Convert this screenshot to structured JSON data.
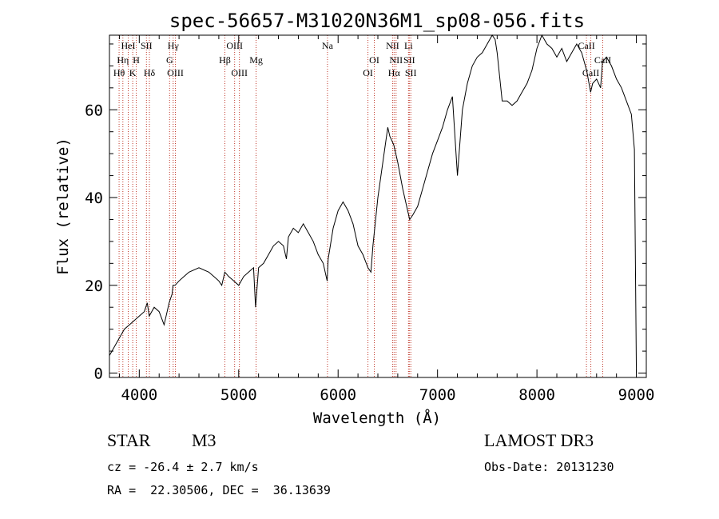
{
  "chart_data": {
    "type": "line",
    "title": "spec-56657-M31020N36M1_sp08-056.fits",
    "xlabel": "Wavelength (Å)",
    "ylabel": "Flux (relative)",
    "xlim": [
      3700,
      9100
    ],
    "ylim": [
      -1,
      77
    ],
    "x_ticks": [
      4000,
      5000,
      6000,
      7000,
      8000,
      9000
    ],
    "x_tick_labels": [
      "4000",
      "5000",
      "6000",
      "7000",
      "8000",
      "9000"
    ],
    "y_ticks": [
      0,
      20,
      40,
      60
    ],
    "y_tick_labels": [
      "0",
      "20",
      "40",
      "60"
    ],
    "grid": false,
    "series": [
      {
        "name": "spectrum",
        "x": [
          3700,
          3750,
          3800,
          3850,
          3900,
          3950,
          4000,
          4050,
          4080,
          4100,
          4150,
          4200,
          4250,
          4280,
          4300,
          4330,
          4340,
          4360,
          4400,
          4450,
          4500,
          4600,
          4700,
          4750,
          4800,
          4830,
          4860,
          4900,
          4950,
          5000,
          5050,
          5100,
          5150,
          5170,
          5200,
          5250,
          5300,
          5350,
          5400,
          5450,
          5480,
          5500,
          5550,
          5600,
          5650,
          5700,
          5750,
          5800,
          5850,
          5890,
          5900,
          5950,
          6000,
          6050,
          6100,
          6150,
          6200,
          6250,
          6300,
          6330,
          6350,
          6400,
          6450,
          6500,
          6520,
          6560,
          6600,
          6650,
          6700,
          6720,
          6750,
          6800,
          6850,
          6900,
          6950,
          7000,
          7050,
          7100,
          7150,
          7200,
          7250,
          7300,
          7350,
          7400,
          7450,
          7500,
          7550,
          7580,
          7600,
          7650,
          7700,
          7750,
          7800,
          7850,
          7900,
          7950,
          8000,
          8050,
          8100,
          8150,
          8200,
          8250,
          8300,
          8350,
          8400,
          8450,
          8500,
          8540,
          8560,
          8600,
          8640,
          8660,
          8700,
          8750,
          8800,
          8850,
          8900,
          8950,
          8980,
          9000
        ],
        "y": [
          4,
          6,
          8,
          10,
          11,
          12,
          13,
          14,
          16,
          13,
          15,
          14,
          11,
          14,
          16,
          18,
          20,
          20,
          21,
          22,
          23,
          24,
          23,
          22,
          21,
          20,
          23,
          22,
          21,
          20,
          22,
          23,
          24,
          15,
          24,
          25,
          27,
          29,
          30,
          29,
          26,
          31,
          33,
          32,
          34,
          32,
          30,
          27,
          25,
          21,
          26,
          33,
          37,
          39,
          37,
          34,
          29,
          27,
          24,
          23,
          29,
          40,
          48,
          56,
          54,
          52,
          48,
          42,
          37,
          35,
          36,
          38,
          42,
          46,
          50,
          53,
          56,
          60,
          63,
          45,
          60,
          66,
          70,
          72,
          73,
          75,
          77,
          76,
          73,
          62,
          62,
          61,
          62,
          64,
          66,
          69,
          74,
          77,
          75,
          74,
          72,
          74,
          71,
          73,
          75,
          73,
          69,
          64,
          66,
          67,
          65,
          71,
          72,
          70,
          67,
          65,
          62,
          59,
          51,
          0
        ]
      }
    ],
    "line_markers": [
      {
        "x": 3797,
        "label": "Hθ",
        "row": 3
      },
      {
        "x": 3835,
        "label": "Hη",
        "row": 2
      },
      {
        "x": 3889,
        "label": "HeI",
        "row": 1
      },
      {
        "x": 3934,
        "label": "K",
        "row": 3
      },
      {
        "x": 3970,
        "label": "H",
        "row": 2
      },
      {
        "x": 4072,
        "label": "SII",
        "row": 1
      },
      {
        "x": 4102,
        "label": "Hδ",
        "row": 3
      },
      {
        "x": 4305,
        "label": "G",
        "row": 2
      },
      {
        "x": 4341,
        "label": "Hγ",
        "row": 1
      },
      {
        "x": 4363,
        "label": "OIII",
        "row": 3
      },
      {
        "x": 4861,
        "label": "Hβ",
        "row": 2
      },
      {
        "x": 4959,
        "label": "OIII",
        "row": 1
      },
      {
        "x": 5007,
        "label": "OIII",
        "row": 3
      },
      {
        "x": 5175,
        "label": "Mg",
        "row": 2
      },
      {
        "x": 5893,
        "label": "Na",
        "row": 1
      },
      {
        "x": 6300,
        "label": "OI",
        "row": 3
      },
      {
        "x": 6364,
        "label": "OI",
        "row": 2
      },
      {
        "x": 6548,
        "label": "NII",
        "row": 1
      },
      {
        "x": 6563,
        "label": "Hα",
        "row": 3
      },
      {
        "x": 6583,
        "label": "NII",
        "row": 2
      },
      {
        "x": 6708,
        "label": "Li",
        "row": 1
      },
      {
        "x": 6716,
        "label": "SII",
        "row": 2
      },
      {
        "x": 6731,
        "label": "SII",
        "row": 3
      },
      {
        "x": 8498,
        "label": "CaII",
        "row": 1
      },
      {
        "x": 8542,
        "label": "CaII",
        "row": 3
      },
      {
        "x": 8662,
        "label": "CaII",
        "row": 2
      }
    ]
  },
  "info": {
    "object_class": "STAR",
    "subclass": "M3",
    "survey": "LAMOST DR3",
    "cz": "cz = -26.4 ± 2.7 km/s",
    "obs_date": "Obs-Date: 20131230",
    "coords": "RA =  22.30506, DEC =  36.13639"
  }
}
